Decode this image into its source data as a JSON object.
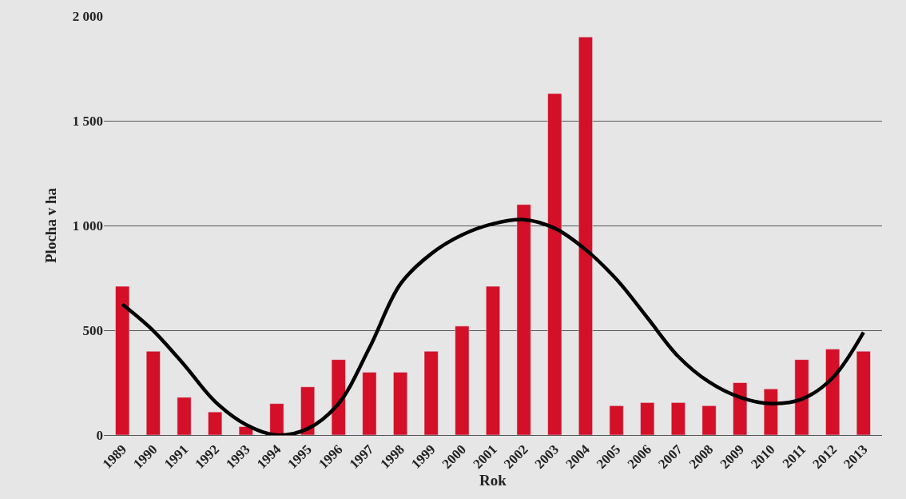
{
  "chart_data": {
    "type": "bar",
    "xlabel": "Rok",
    "ylabel": "Plocha v ha",
    "categories": [
      "1989",
      "1990",
      "1991",
      "1992",
      "1993",
      "1994",
      "1995",
      "1996",
      "1997",
      "1998",
      "1999",
      "2000",
      "2001",
      "2002",
      "2003",
      "2004",
      "2005",
      "2006",
      "2007",
      "2008",
      "2009",
      "2010",
      "2011",
      "2012",
      "2013"
    ],
    "series": [
      {
        "color": "#d31027",
        "values": [
          710,
          400,
          180,
          110,
          40,
          150,
          230,
          360,
          300,
          300,
          400,
          520,
          710,
          1100,
          1630,
          1900,
          140,
          155,
          155,
          140,
          250,
          220,
          360,
          410,
          400
        ]
      },
      {
        "type": "line",
        "color": "#000000",
        "values": [
          624,
          498,
          335,
          160,
          50,
          0,
          30,
          150,
          416,
          720,
          865,
          955,
          1008,
          1028,
          987,
          885,
          743,
          560,
          375,
          253,
          180,
          150,
          171,
          273,
          490
        ]
      }
    ],
    "ylim": [
      0,
      2000
    ],
    "yticks": [
      0,
      500,
      {
        "value": 1000,
        "label": "1 000"
      },
      {
        "value": 1500,
        "label": "1 500"
      },
      {
        "value": 2000,
        "label": "2 000"
      }
    ],
    "grid": "y",
    "marker": "none",
    "line_style": "solid"
  }
}
